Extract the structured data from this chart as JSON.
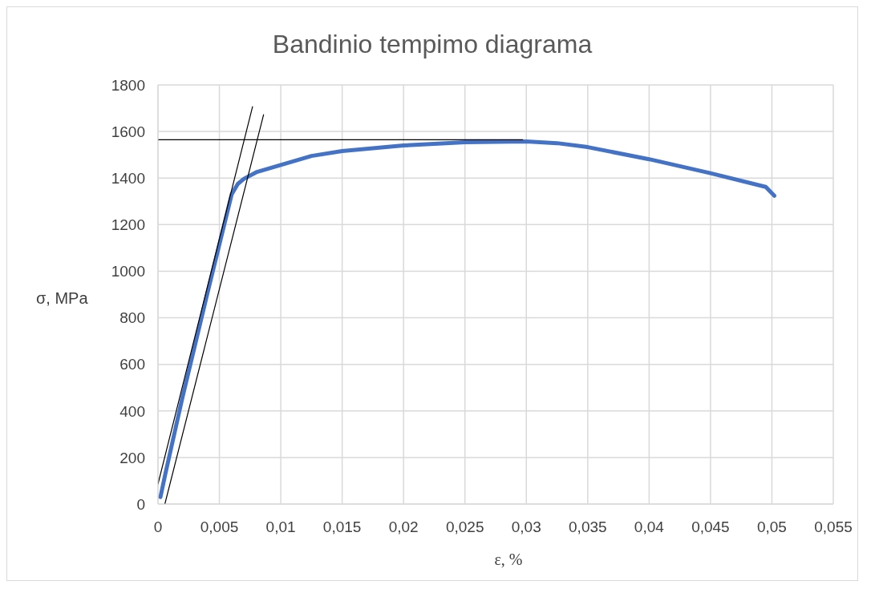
{
  "chart_data": {
    "type": "line",
    "title": "Bandinio tempimo diagrama",
    "xlabel": "ε, %",
    "ylabel": "σ, MPa",
    "xlim": [
      0,
      0.055
    ],
    "xticks": [
      0,
      {
        "value": 0.005,
        "label": "0,005"
      },
      {
        "value": 0.01,
        "label": "0,01"
      },
      {
        "value": 0.015,
        "label": "0,015"
      },
      {
        "value": 0.02,
        "label": "0,02"
      },
      {
        "value": 0.025,
        "label": "0,025"
      },
      {
        "value": 0.03,
        "label": "0,03"
      },
      {
        "value": 0.035,
        "label": "0,035"
      },
      {
        "value": 0.04,
        "label": "0,04"
      },
      {
        "value": 0.045,
        "label": "0,045"
      },
      {
        "value": 0.05,
        "label": "0,05"
      },
      {
        "value": 0.055,
        "label": "0,055"
      }
    ],
    "ylim": [
      0,
      1800
    ],
    "yticks": [
      0,
      200,
      400,
      600,
      800,
      1000,
      1200,
      1400,
      1600,
      1800
    ],
    "grid": true,
    "marker": "none",
    "line_style": "solid",
    "series": [
      {
        "color": "#4472c4",
        "x": [
          0.0002,
          0.0006,
          0.002,
          0.004,
          0.006,
          0.0065,
          0.007,
          0.008,
          0.01,
          0.0125,
          0.015,
          0.02,
          0.025,
          0.03,
          0.0325,
          0.035,
          0.04,
          0.045,
          0.0495,
          0.0502
        ],
        "values": [
          30,
          130,
          460,
          900,
          1330,
          1375,
          1397,
          1425,
          1456,
          1495,
          1516,
          1540,
          1554,
          1557,
          1550,
          1533,
          1481,
          1421,
          1362,
          1324
        ]
      },
      {
        "color": "#000000",
        "x": [
          0,
          0.0077
        ],
        "values": [
          86,
          1707
        ]
      },
      {
        "color": "#000000",
        "x": [
          0.00056,
          0.0086
        ],
        "values": [
          0,
          1672
        ]
      },
      {
        "color": "#000000",
        "x": [
          0,
          0.0297
        ],
        "values": [
          1565,
          1565
        ]
      }
    ]
  }
}
